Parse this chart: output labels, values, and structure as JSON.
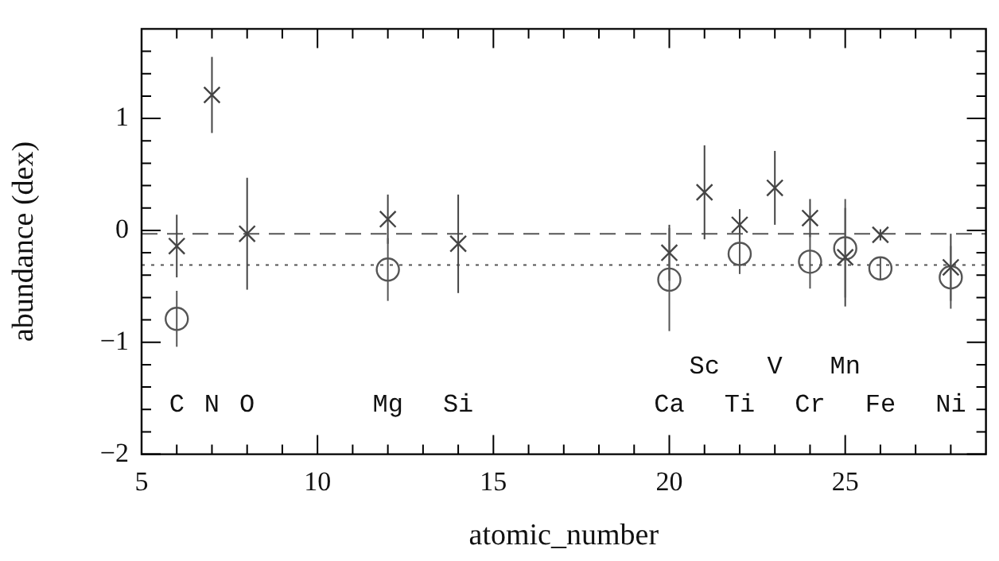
{
  "chart_data": {
    "type": "scatter",
    "xlabel": "atomic_number",
    "ylabel": "abundance (dex)",
    "xlim": [
      5,
      29
    ],
    "xticks": [
      5,
      {
        "value": 6,
        "label": null
      },
      {
        "value": 7,
        "label": null
      },
      {
        "value": 8,
        "label": null
      },
      {
        "value": 9,
        "label": null
      },
      10,
      {
        "value": 11,
        "label": null
      },
      {
        "value": 12,
        "label": null
      },
      {
        "value": 13,
        "label": null
      },
      {
        "value": 14,
        "label": null
      },
      15,
      {
        "value": 16,
        "label": null
      },
      {
        "value": 17,
        "label": null
      },
      {
        "value": 18,
        "label": null
      },
      {
        "value": 19,
        "label": null
      },
      20,
      {
        "value": 21,
        "label": null
      },
      {
        "value": 22,
        "label": null
      },
      {
        "value": 23,
        "label": null
      },
      {
        "value": 24,
        "label": null
      },
      25,
      {
        "value": 26,
        "label": null
      },
      {
        "value": 27,
        "label": null
      },
      {
        "value": 28,
        "label": null
      }
    ],
    "ylim": [
      -2,
      1.8
    ],
    "yticks": [
      -2,
      {
        "value": -1.8,
        "label": null
      },
      {
        "value": -1.6,
        "label": null
      },
      {
        "value": -1.4,
        "label": null
      },
      {
        "value": -1.2,
        "label": null
      },
      -1,
      {
        "value": -0.8,
        "label": null
      },
      {
        "value": -0.6,
        "label": null
      },
      {
        "value": -0.4,
        "label": null
      },
      {
        "value": -0.2,
        "label": null
      },
      0,
      {
        "value": 0.2,
        "label": null
      },
      {
        "value": 0.4,
        "label": null
      },
      {
        "value": 0.6,
        "label": null
      },
      {
        "value": 0.8,
        "label": null
      },
      1,
      {
        "value": 1.2,
        "label": null
      },
      {
        "value": 1.4,
        "label": null
      },
      {
        "value": 1.6,
        "label": null
      }
    ],
    "grid": false,
    "legend": false,
    "series": [
      {
        "marker": "cross",
        "color": "#444444",
        "x": [
          6,
          7,
          8,
          12,
          14,
          20,
          21,
          22,
          23,
          24,
          25,
          26,
          28
        ],
        "values": [
          -0.14,
          1.21,
          -0.03,
          0.1,
          -0.12,
          -0.2,
          0.34,
          0.05,
          0.38,
          0.11,
          -0.24,
          -0.04,
          -0.33
        ],
        "errors": [
          0.28,
          0.34,
          0.5,
          0.22,
          0.44,
          0.25,
          0.42,
          0.14,
          0.33,
          0.17,
          0.44,
          0.05,
          0.3
        ]
      },
      {
        "marker": "circle",
        "color": "#555555",
        "x": [
          6,
          12,
          20,
          22,
          24,
          25,
          26,
          28
        ],
        "values": [
          -0.79,
          -0.35,
          -0.44,
          -0.21,
          -0.28,
          -0.16,
          -0.34,
          -0.42
        ],
        "errors": [
          0.25,
          0.28,
          0.46,
          0.18,
          0.24,
          0.44,
          0.1,
          0.28
        ]
      }
    ],
    "ref_lines": [
      {
        "axis": "y",
        "value": -0.03,
        "line_style": "dashed",
        "color": "#555555"
      },
      {
        "axis": "y",
        "value": -0.31,
        "line_style": "dotted",
        "color": "#555555"
      }
    ],
    "annotations": [
      "C",
      "N",
      "O",
      "Mg",
      "Si",
      "Ca",
      "Sc",
      "Ti",
      "V",
      "Cr",
      "Mn",
      "Fe",
      "Ni"
    ]
  }
}
